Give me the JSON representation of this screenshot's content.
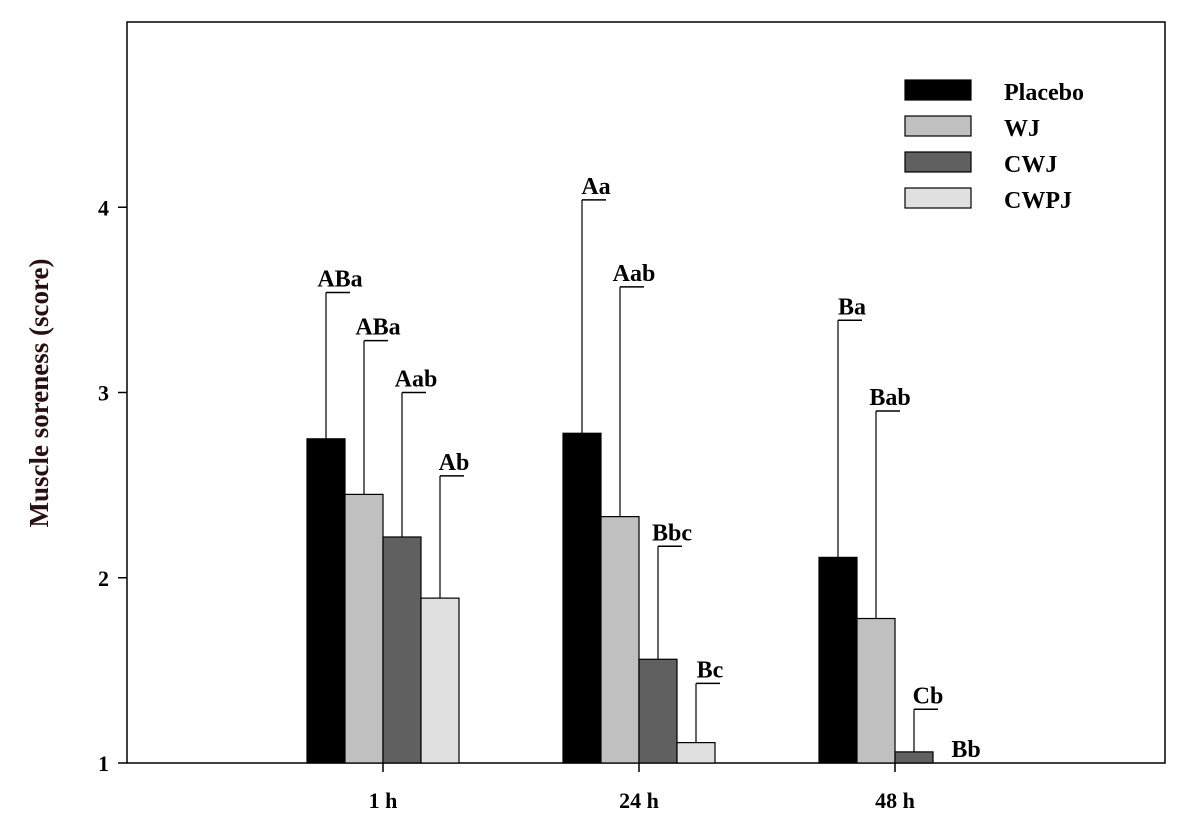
{
  "chart_data": {
    "type": "bar",
    "title": "",
    "xlabel": "",
    "ylabel": "Muscle soreness (score)",
    "ylim": [
      1,
      5
    ],
    "yticks": [
      1,
      2,
      3,
      4
    ],
    "categories": [
      "1 h",
      "24 h",
      "48 h"
    ],
    "legend_position": "top-right",
    "series": [
      {
        "name": "Placebo",
        "color": "#000000",
        "values": [
          2.75,
          2.78,
          2.11
        ],
        "errors_upper": [
          3.54,
          4.04,
          3.39
        ],
        "labels": [
          "ABa",
          "Aa",
          "Ba"
        ]
      },
      {
        "name": "WJ",
        "color": "#c0c0c0",
        "values": [
          2.45,
          2.33,
          1.78
        ],
        "errors_upper": [
          3.28,
          3.57,
          2.9
        ],
        "labels": [
          "ABa",
          "Aab",
          "Bab"
        ]
      },
      {
        "name": "CWJ",
        "color": "#606060",
        "values": [
          2.22,
          1.56,
          1.06
        ],
        "errors_upper": [
          3.0,
          2.17,
          1.29
        ],
        "labels": [
          "Aab",
          "Bbc",
          "Cb"
        ]
      },
      {
        "name": "CWPJ",
        "color": "#e0e0e0",
        "values": [
          1.89,
          1.11,
          1.0
        ],
        "errors_upper": [
          2.55,
          1.43,
          1.0
        ],
        "labels": [
          "Ab",
          "Bc",
          "Bb"
        ]
      }
    ]
  }
}
